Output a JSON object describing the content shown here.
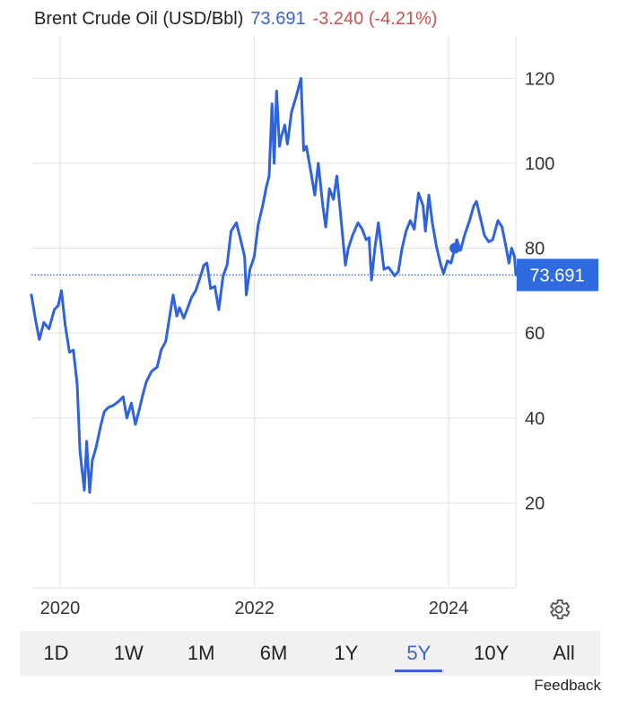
{
  "header": {
    "instrument": "Brent Crude Oil (USD/Bbl)",
    "price": "73.691",
    "change": "-3.240 (-4.21%)"
  },
  "colors": {
    "line": "#2f63dd",
    "price_text": "#3a64c8",
    "change_text": "#c9534f",
    "badge": "#2f6be0",
    "grid": "#e2e2e2"
  },
  "range_tabs": [
    "1D",
    "1W",
    "1M",
    "6M",
    "1Y",
    "5Y",
    "10Y",
    "All"
  ],
  "active_range": "5Y",
  "feedback_label": "Feedback",
  "settings_icon": "gear-icon",
  "chart_data": {
    "type": "line",
    "title": "",
    "xlabel": "",
    "ylabel": "",
    "x_ticks": [
      "2020",
      "2022",
      "2024"
    ],
    "y_ticks": [
      20,
      40,
      60,
      80,
      100,
      120
    ],
    "ylim": [
      0,
      130
    ],
    "xlim": [
      "2019-09-15",
      "2024-09-10"
    ],
    "grid": true,
    "y_axis_position": "right",
    "last_value_label": "73.691",
    "series": [
      {
        "x": [
          "2019-09-15",
          "2019-10-01",
          "2019-10-15",
          "2019-11-01",
          "2019-11-20",
          "2019-12-10",
          "2019-12-25",
          "2020-01-06",
          "2020-01-20",
          "2020-02-05",
          "2020-02-20",
          "2020-03-05",
          "2020-03-16",
          "2020-03-25",
          "2020-04-01",
          "2020-04-10",
          "2020-04-21",
          "2020-05-01",
          "2020-05-15",
          "2020-06-01",
          "2020-06-15",
          "2020-07-01",
          "2020-07-20",
          "2020-08-10",
          "2020-08-25",
          "2020-09-08",
          "2020-09-25",
          "2020-10-10",
          "2020-10-25",
          "2020-11-05",
          "2020-11-20",
          "2020-12-10",
          "2020-12-31",
          "2021-01-15",
          "2021-02-01",
          "2021-02-15",
          "2021-03-01",
          "2021-03-15",
          "2021-03-25",
          "2021-04-10",
          "2021-04-25",
          "2021-05-10",
          "2021-05-25",
          "2021-06-10",
          "2021-06-25",
          "2021-07-06",
          "2021-07-20",
          "2021-08-05",
          "2021-08-20",
          "2021-09-05",
          "2021-09-20",
          "2021-10-05",
          "2021-10-25",
          "2021-11-10",
          "2021-11-25",
          "2021-12-01",
          "2021-12-15",
          "2021-12-31",
          "2022-01-15",
          "2022-02-01",
          "2022-02-15",
          "2022-02-25",
          "2022-03-08",
          "2022-03-16",
          "2022-03-25",
          "2022-04-05",
          "2022-04-11",
          "2022-04-25",
          "2022-05-05",
          "2022-05-20",
          "2022-06-08",
          "2022-06-25",
          "2022-07-05",
          "2022-07-15",
          "2022-08-01",
          "2022-08-16",
          "2022-08-29",
          "2022-09-15",
          "2022-09-26",
          "2022-10-10",
          "2022-10-25",
          "2022-11-07",
          "2022-11-20",
          "2022-12-09",
          "2022-12-20",
          "2023-01-05",
          "2023-01-25",
          "2023-02-10",
          "2023-02-25",
          "2023-03-08",
          "2023-03-17",
          "2023-03-30",
          "2023-04-12",
          "2023-05-03",
          "2023-05-20",
          "2023-06-12",
          "2023-06-26",
          "2023-07-10",
          "2023-07-25",
          "2023-08-10",
          "2023-08-25",
          "2023-09-10",
          "2023-09-27",
          "2023-10-06",
          "2023-10-19",
          "2023-11-01",
          "2023-11-16",
          "2023-12-01",
          "2023-12-13",
          "2023-12-28",
          "2024-01-10",
          "2024-01-25",
          "2024-02-01",
          "2024-02-15",
          "2024-03-01",
          "2024-03-20",
          "2024-04-05",
          "2024-04-15",
          "2024-04-30",
          "2024-05-15",
          "2024-05-31",
          "2024-06-15",
          "2024-06-30",
          "2024-07-05",
          "2024-07-20",
          "2024-08-05",
          "2024-08-15",
          "2024-08-25",
          "2024-09-05",
          "2024-09-10"
        ],
        "values": [
          69.0,
          63.0,
          58.5,
          62.5,
          61.0,
          65.5,
          66.5,
          70.0,
          62.0,
          55.5,
          56.0,
          48.0,
          32.0,
          27.0,
          23.0,
          34.5,
          22.5,
          30.0,
          33.0,
          38.0,
          41.5,
          42.5,
          43.0,
          44.0,
          45.0,
          40.0,
          43.5,
          38.5,
          42.0,
          45.0,
          48.5,
          51.0,
          52.0,
          56.0,
          58.0,
          63.5,
          69.0,
          64.0,
          66.0,
          63.5,
          66.0,
          68.5,
          70.0,
          73.0,
          76.0,
          76.5,
          70.5,
          71.0,
          65.5,
          73.5,
          76.0,
          84.0,
          86.0,
          82.0,
          78.0,
          69.0,
          75.0,
          78.0,
          85.5,
          90.0,
          94.5,
          97.0,
          114.0,
          100.0,
          117.0,
          104.0,
          106.0,
          109.0,
          104.5,
          112.0,
          116.0,
          120.0,
          103.0,
          104.0,
          98.0,
          92.5,
          100.0,
          90.0,
          85.0,
          94.0,
          91.5,
          97.0,
          88.5,
          76.0,
          80.0,
          83.0,
          86.0,
          84.5,
          82.0,
          82.5,
          72.5,
          80.0,
          86.0,
          75.0,
          75.5,
          73.5,
          74.5,
          80.0,
          84.0,
          86.5,
          84.5,
          93.0,
          90.0,
          84.0,
          92.5,
          86.0,
          80.5,
          76.5,
          74.0,
          77.0,
          76.5,
          80.0,
          82.0,
          79.5,
          83.0,
          86.5,
          90.0,
          91.0,
          87.0,
          83.0,
          81.5,
          82.0,
          85.5,
          86.5,
          85.0,
          80.0,
          76.5,
          80.0,
          78.0,
          73.691
        ]
      }
    ]
  }
}
